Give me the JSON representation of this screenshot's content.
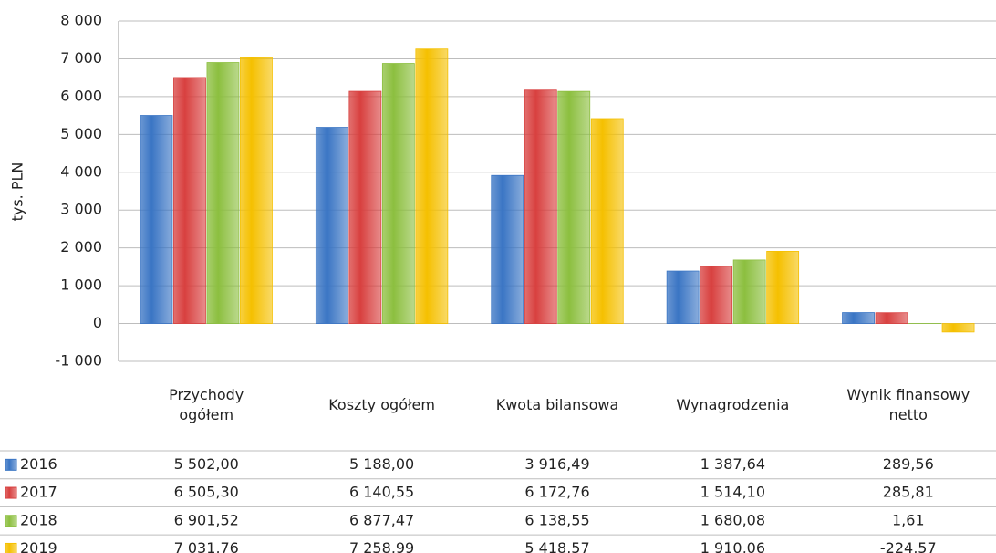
{
  "chart_data": {
    "type": "bar",
    "y_label": "tys. PLN",
    "categories": [
      "Przychody ogółem",
      "Koszty ogółem",
      "Kwota bilansowa",
      "Wynagrodzenia",
      "Wynik finansowy netto"
    ],
    "series": [
      {
        "name": "2016",
        "color": "#3a75c4",
        "values": [
          5502.0,
          5188.0,
          3916.49,
          1387.64,
          289.56
        ],
        "value_labels": [
          "5 502,00",
          "5 188,00",
          "3 916,49",
          "1 387,64",
          "289,56"
        ]
      },
      {
        "name": "2017",
        "color": "#d8403f",
        "values": [
          6505.3,
          6140.55,
          6172.76,
          1514.1,
          285.81
        ],
        "value_labels": [
          "6 505,30",
          "6 140,55",
          "6 172,76",
          "1 514,10",
          "285,81"
        ]
      },
      {
        "name": "2018",
        "color": "#8cbf3f",
        "values": [
          6901.52,
          6877.47,
          6138.55,
          1680.08,
          1.61
        ],
        "value_labels": [
          "6 901,52",
          "6 877,47",
          "6 138,55",
          "1 680,08",
          "1,61"
        ]
      },
      {
        "name": "2019",
        "color": "#f5c000",
        "values": [
          7031.76,
          7258.99,
          5418.57,
          1910.06,
          -224.57
        ],
        "value_labels": [
          "7 031,76",
          "7 258,99",
          "5 418,57",
          "1 910,06",
          "-224,57"
        ]
      }
    ],
    "ylim": [
      -1000,
      8000
    ],
    "yticks": [
      {
        "value": -1000,
        "label": "-1 000"
      },
      0,
      {
        "value": 1000,
        "label": "1 000"
      },
      {
        "value": 2000,
        "label": "2 000"
      },
      {
        "value": 3000,
        "label": "3 000"
      },
      {
        "value": 4000,
        "label": "4 000"
      },
      {
        "value": 5000,
        "label": "5 000"
      },
      {
        "value": 6000,
        "label": "6 000"
      },
      {
        "value": 7000,
        "label": "7 000"
      },
      {
        "value": 8000,
        "label": "8 000"
      }
    ],
    "grid": true
  }
}
